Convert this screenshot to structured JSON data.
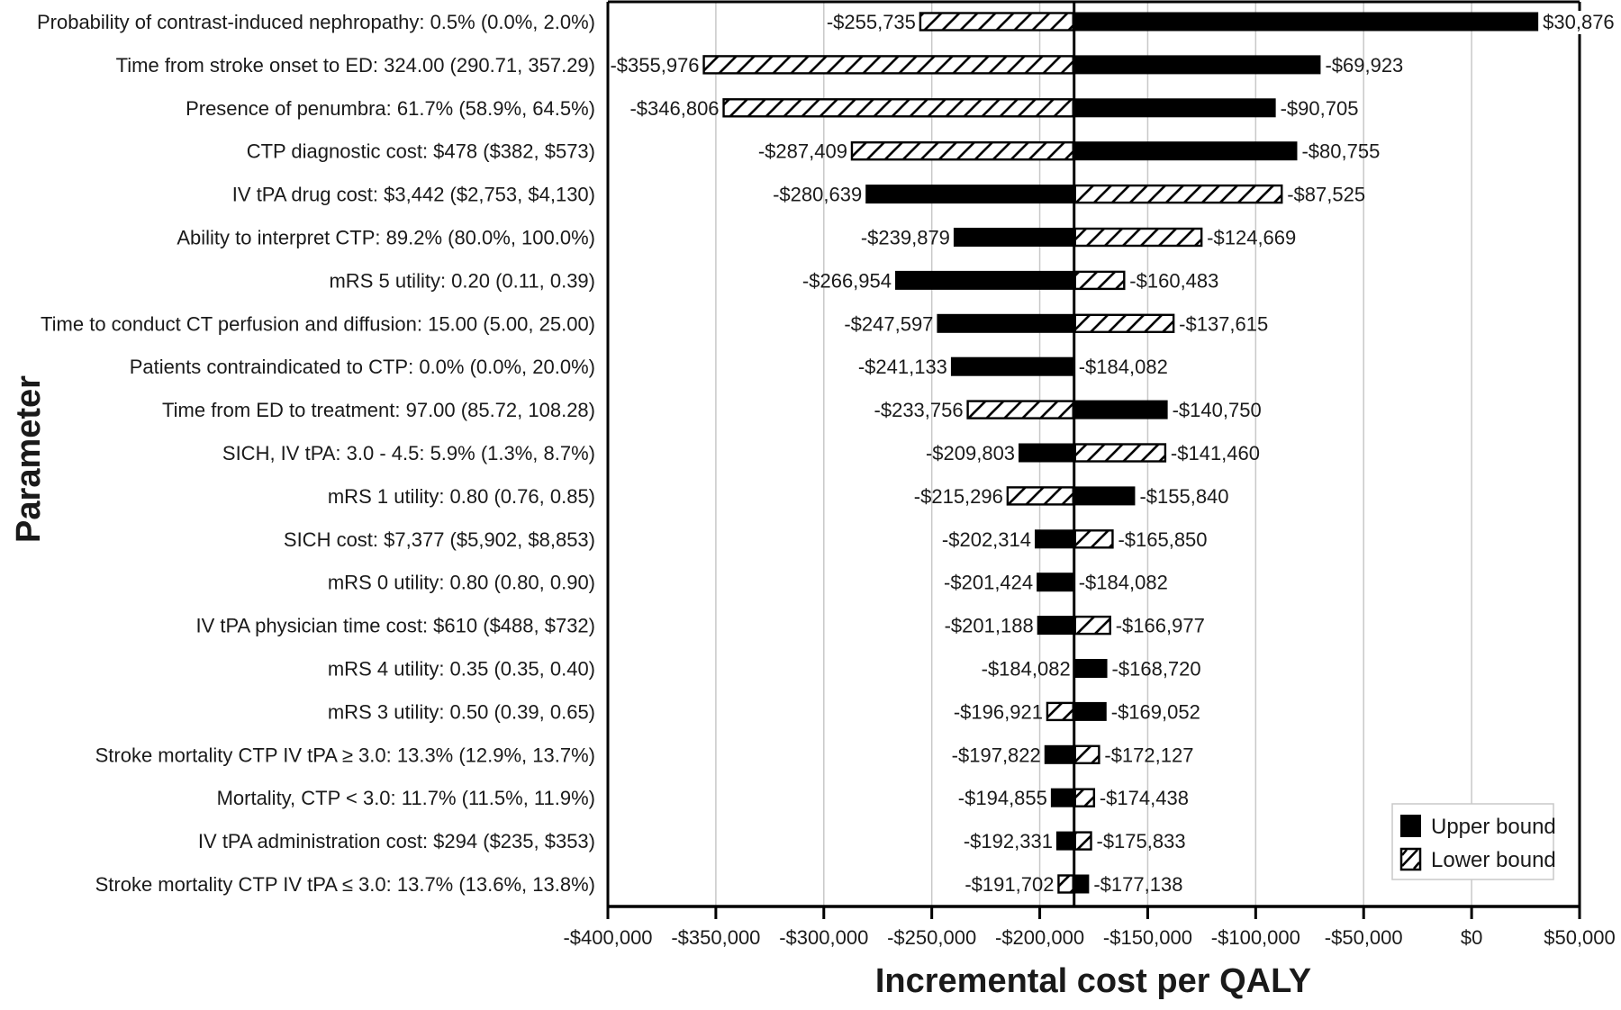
{
  "chart_data": {
    "type": "bar",
    "subtype": "tornado",
    "xlabel": "Incremental cost per QALY",
    "ylabel": "Parameter",
    "xlim": [
      -400000,
      50000
    ],
    "baseline": -184082,
    "grid": true,
    "legend_position": "bottom-right",
    "x_ticks": [
      -400000,
      -350000,
      -300000,
      -250000,
      -200000,
      -150000,
      -100000,
      -50000,
      0,
      50000
    ],
    "x_tick_labels": [
      "-$400,000",
      "-$350,000",
      "-$300,000",
      "-$250,000",
      "-$200,000",
      "-$150,000",
      "-$100,000",
      "-$50,000",
      "$0",
      "$50,000"
    ],
    "legend": [
      {
        "key": "upper",
        "label": "Upper bound",
        "style": "solid"
      },
      {
        "key": "lower",
        "label": "Lower bound",
        "style": "hatched"
      }
    ],
    "colors": {
      "upper": "#000000",
      "lower_fill": "#ffffff",
      "lower_hatch": "#000000",
      "grid": "#c8c8c8"
    },
    "categories": [
      "Probability of contrast-induced nephropathy: 0.5% (0.0%, 2.0%)",
      "Time from stroke onset to ED: 324.00 (290.71, 357.29)",
      "Presence of penumbra: 61.7% (58.9%, 64.5%)",
      "CTP diagnostic cost: $478 ($382, $573)",
      "IV tPA drug cost: $3,442 ($2,753, $4,130)",
      "Ability to interpret CTP: 89.2% (80.0%, 100.0%)",
      "mRS 5 utility: 0.20 (0.11, 0.39)",
      "Time to conduct CT perfusion and diffusion: 15.00 (5.00, 25.00)",
      "Patients contraindicated to CTP: 0.0% (0.0%, 20.0%)",
      "Time from ED to treatment: 97.00 (85.72, 108.28)",
      "SICH, IV tPA: 3.0 - 4.5: 5.9% (1.3%, 8.7%)",
      "mRS 1 utility: 0.80 (0.76, 0.85)",
      "SICH cost: $7,377 ($5,902, $8,853)",
      "mRS 0 utility: 0.80 (0.80, 0.90)",
      "IV tPA physician time cost: $610 ($488, $732)",
      "mRS 4 utility: 0.35 (0.35, 0.40)",
      "mRS 3 utility: 0.50 (0.39, 0.65)",
      "Stroke mortality CTP IV tPA ≥ 3.0: 13.3% (12.9%, 13.7%)",
      "Mortality, CTP < 3.0: 11.7% (11.5%, 11.9%)",
      "IV tPA administration cost: $294 ($235, $353)",
      "Stroke mortality CTP IV tPA ≤ 3.0: 13.7% (13.6%, 13.8%)"
    ],
    "rows": [
      {
        "left": -255735,
        "left_label": "-$255,735",
        "left_type": "lower",
        "right": 30876,
        "right_label": "$30,876",
        "right_type": "upper"
      },
      {
        "left": -355976,
        "left_label": "-$355,976",
        "left_type": "lower",
        "right": -69923,
        "right_label": "-$69,923",
        "right_type": "upper"
      },
      {
        "left": -346806,
        "left_label": "-$346,806",
        "left_type": "lower",
        "right": -90705,
        "right_label": "-$90,705",
        "right_type": "upper"
      },
      {
        "left": -287409,
        "left_label": "-$287,409",
        "left_type": "lower",
        "right": -80755,
        "right_label": "-$80,755",
        "right_type": "upper"
      },
      {
        "left": -280639,
        "left_label": "-$280,639",
        "left_type": "upper",
        "right": -87525,
        "right_label": "-$87,525",
        "right_type": "lower"
      },
      {
        "left": -239879,
        "left_label": "-$239,879",
        "left_type": "upper",
        "right": -124669,
        "right_label": "-$124,669",
        "right_type": "lower"
      },
      {
        "left": -266954,
        "left_label": "-$266,954",
        "left_type": "upper",
        "right": -160483,
        "right_label": "-$160,483",
        "right_type": "lower"
      },
      {
        "left": -247597,
        "left_label": "-$247,597",
        "left_type": "upper",
        "right": -137615,
        "right_label": "-$137,615",
        "right_type": "lower"
      },
      {
        "left": -241133,
        "left_label": "-$241,133",
        "left_type": "upper",
        "right": -184082,
        "right_label": "-$184,082",
        "right_type": "lower"
      },
      {
        "left": -233756,
        "left_label": "-$233,756",
        "left_type": "lower",
        "right": -140750,
        "right_label": "-$140,750",
        "right_type": "upper"
      },
      {
        "left": -209803,
        "left_label": "-$209,803",
        "left_type": "upper",
        "right": -141460,
        "right_label": "-$141,460",
        "right_type": "lower"
      },
      {
        "left": -215296,
        "left_label": "-$215,296",
        "left_type": "lower",
        "right": -155840,
        "right_label": "-$155,840",
        "right_type": "upper"
      },
      {
        "left": -202314,
        "left_label": "-$202,314",
        "left_type": "upper",
        "right": -165850,
        "right_label": "-$165,850",
        "right_type": "lower"
      },
      {
        "left": -201424,
        "left_label": "-$201,424",
        "left_type": "upper",
        "right": -184082,
        "right_label": "-$184,082",
        "right_type": "lower"
      },
      {
        "left": -201188,
        "left_label": "-$201,188",
        "left_type": "upper",
        "right": -166977,
        "right_label": "-$166,977",
        "right_type": "lower"
      },
      {
        "left": -184082,
        "left_label": "-$184,082",
        "left_type": "lower",
        "right": -168720,
        "right_label": "-$168,720",
        "right_type": "upper"
      },
      {
        "left": -196921,
        "left_label": "-$196,921",
        "left_type": "lower",
        "right": -169052,
        "right_label": "-$169,052",
        "right_type": "upper"
      },
      {
        "left": -197822,
        "left_label": "-$197,822",
        "left_type": "upper",
        "right": -172127,
        "right_label": "-$172,127",
        "right_type": "lower"
      },
      {
        "left": -194855,
        "left_label": "-$194,855",
        "left_type": "upper",
        "right": -174438,
        "right_label": "-$174,438",
        "right_type": "lower"
      },
      {
        "left": -192331,
        "left_label": "-$192,331",
        "left_type": "upper",
        "right": -175833,
        "right_label": "-$175,833",
        "right_type": "lower"
      },
      {
        "left": -191702,
        "left_label": "-$191,702",
        "left_type": "lower",
        "right": -177138,
        "right_label": "-$177,138",
        "right_type": "upper"
      }
    ]
  }
}
